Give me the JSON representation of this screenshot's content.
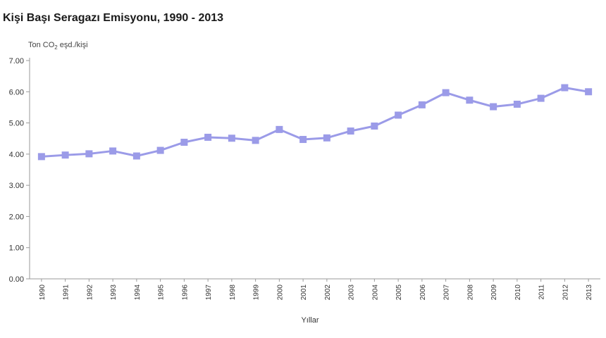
{
  "chart_data": {
    "type": "line",
    "title": "Kişi Başı Seragazı Emisyonu, 1990 - 2013",
    "unit_label": {
      "prefix": "Ton CO",
      "subscript": "2",
      "suffix": " eşd./kişi"
    },
    "xlabel": "Yıllar",
    "ylabel": "",
    "ylim": [
      0,
      7
    ],
    "yticks": [
      "0.00",
      "1.00",
      "2.00",
      "3.00",
      "4.00",
      "5.00",
      "6.00",
      "7.00"
    ],
    "categories": [
      "1990",
      "1991",
      "1992",
      "1993",
      "1994",
      "1995",
      "1996",
      "1997",
      "1998",
      "1999",
      "2000",
      "2001",
      "2002",
      "2003",
      "2004",
      "2005",
      "2006",
      "2007",
      "2008",
      "2009",
      "2010",
      "2011",
      "2012",
      "2013"
    ],
    "series": [
      {
        "values": [
          3.92,
          3.97,
          4.01,
          4.1,
          3.94,
          4.12,
          4.38,
          4.54,
          4.51,
          4.44,
          4.79,
          4.47,
          4.52,
          4.74,
          4.9,
          5.25,
          5.58,
          5.97,
          5.73,
          5.52,
          5.6,
          5.79,
          6.13,
          6.0
        ],
        "color": "#9b9be8"
      }
    ],
    "marker": "square",
    "grid": false,
    "legend": "none"
  }
}
